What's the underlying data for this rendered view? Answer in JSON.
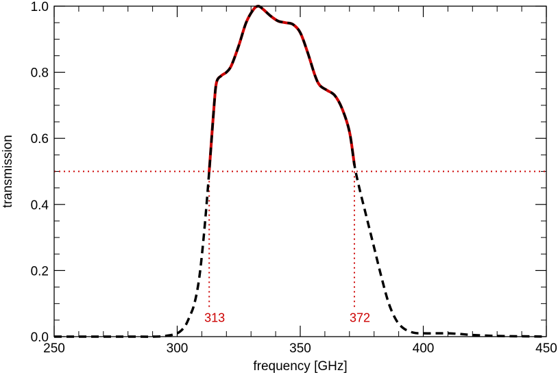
{
  "chart_data": {
    "type": "line",
    "title": "",
    "xlabel": "frequency [GHz]",
    "ylabel": "transmission",
    "xlim": [
      250,
      450
    ],
    "ylim": [
      0.0,
      1.0
    ],
    "x_ticks": [
      250,
      300,
      350,
      400,
      450
    ],
    "y_ticks": [
      0.0,
      0.2,
      0.4,
      0.6,
      0.8,
      1.0
    ],
    "x_minor_step": 10,
    "y_minor_step": 0.05,
    "grid": false,
    "series": [
      {
        "style": "dashed",
        "color": "#000000",
        "points": [
          [
            250,
            0.0
          ],
          [
            260,
            0.0
          ],
          [
            270,
            0.0
          ],
          [
            280,
            0.0
          ],
          [
            290,
            0.0
          ],
          [
            295,
            0.002
          ],
          [
            300,
            0.01
          ],
          [
            303,
            0.03
          ],
          [
            305,
            0.06
          ],
          [
            307,
            0.1
          ],
          [
            309,
            0.18
          ],
          [
            311,
            0.32
          ],
          [
            313,
            0.5
          ],
          [
            315,
            0.7
          ],
          [
            316,
            0.77
          ],
          [
            318,
            0.79
          ],
          [
            320,
            0.8
          ],
          [
            322,
            0.82
          ],
          [
            325,
            0.88
          ],
          [
            328,
            0.95
          ],
          [
            331,
            0.99
          ],
          [
            333,
            1.0
          ],
          [
            335,
            0.99
          ],
          [
            338,
            0.97
          ],
          [
            341,
            0.955
          ],
          [
            344,
            0.95
          ],
          [
            347,
            0.945
          ],
          [
            350,
            0.92
          ],
          [
            353,
            0.86
          ],
          [
            356,
            0.79
          ],
          [
            358,
            0.76
          ],
          [
            361,
            0.745
          ],
          [
            364,
            0.73
          ],
          [
            367,
            0.69
          ],
          [
            370,
            0.62
          ],
          [
            372,
            0.52
          ],
          [
            374,
            0.45
          ],
          [
            377,
            0.36
          ],
          [
            380,
            0.27
          ],
          [
            383,
            0.18
          ],
          [
            386,
            0.1
          ],
          [
            389,
            0.05
          ],
          [
            392,
            0.025
          ],
          [
            396,
            0.012
          ],
          [
            400,
            0.01
          ],
          [
            405,
            0.01
          ],
          [
            410,
            0.01
          ],
          [
            415,
            0.008
          ],
          [
            420,
            0.005
          ],
          [
            430,
            0.002
          ],
          [
            440,
            0.001
          ],
          [
            450,
            0.0
          ]
        ]
      },
      {
        "style": "solid",
        "color": "#cc0000",
        "points": [
          [
            313,
            0.5
          ],
          [
            315,
            0.7
          ],
          [
            316,
            0.77
          ],
          [
            318,
            0.79
          ],
          [
            320,
            0.8
          ],
          [
            322,
            0.82
          ],
          [
            325,
            0.88
          ],
          [
            328,
            0.95
          ],
          [
            331,
            0.99
          ],
          [
            333,
            1.0
          ],
          [
            335,
            0.99
          ],
          [
            338,
            0.97
          ],
          [
            341,
            0.955
          ],
          [
            344,
            0.95
          ],
          [
            347,
            0.945
          ],
          [
            350,
            0.92
          ],
          [
            353,
            0.86
          ],
          [
            356,
            0.79
          ],
          [
            358,
            0.76
          ],
          [
            361,
            0.745
          ],
          [
            364,
            0.73
          ],
          [
            367,
            0.69
          ],
          [
            370,
            0.62
          ],
          [
            372,
            0.52
          ]
        ]
      }
    ],
    "reference_lines": {
      "horizontal_y": 0.5,
      "color": "#cc0000",
      "style": "dotted"
    },
    "annotations": [
      {
        "x": 313,
        "label": "313"
      },
      {
        "x": 372,
        "label": "372"
      }
    ],
    "annotation_line_bottom_y": 0.08,
    "annotation_label_y": 0.045
  }
}
